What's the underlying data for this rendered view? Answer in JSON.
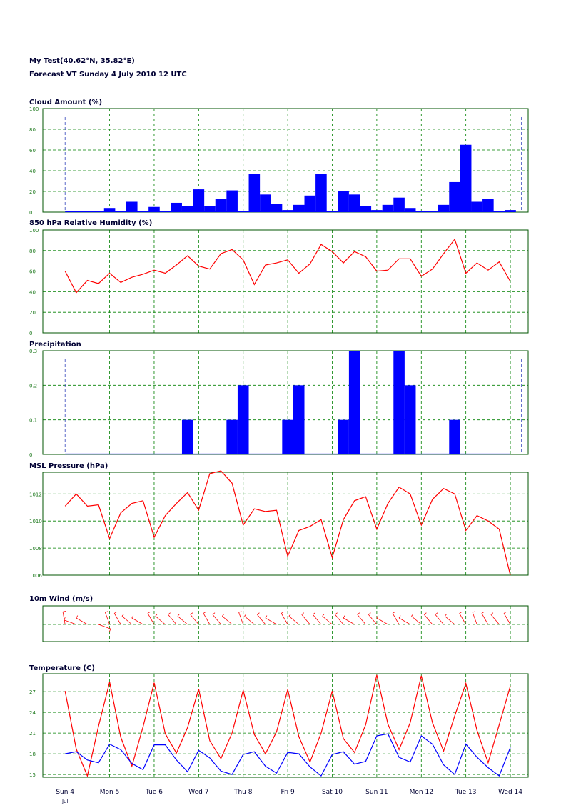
{
  "header": {
    "location": "My Test(40.62°N, 35.82°E)",
    "forecast": "Forecast VT Sunday  4 July 2010 12 UTC"
  },
  "colors": {
    "grid": "#008000",
    "frame": "#005500",
    "bar": "#0000ff",
    "red_line": "#ff0000",
    "blue_line": "#0000ff",
    "tick_text": "#1f7a1f",
    "title_text": "#000033",
    "sunday_label": "#cc0000"
  },
  "x_axis": {
    "labels": [
      "Sun  4",
      "Mon  5",
      "Tue  6",
      "Wed  7",
      "Thu  8",
      "Fri  9",
      "Sat 10",
      "Sun 11",
      "Mon 12",
      "Tue 13",
      "Wed 14"
    ],
    "sunday_indices": [
      0,
      7
    ],
    "sub_label": "Jul",
    "range_days": [
      -0.5,
      10.4
    ]
  },
  "chart_data": [
    {
      "id": "cloud",
      "type": "bar",
      "title": "Cloud Amount (%)",
      "ylim": [
        0,
        100
      ],
      "yticks": [
        0,
        20,
        40,
        60,
        80,
        100
      ],
      "grid": true,
      "step_days": 0.25,
      "x_start_days": 0,
      "values": [
        0,
        0,
        0,
        1,
        4,
        1,
        10,
        0,
        5,
        0,
        9,
        6,
        22,
        6,
        13,
        21,
        1,
        37,
        17,
        8,
        2,
        7,
        16,
        37,
        0,
        20,
        17,
        6,
        2,
        7,
        14,
        4,
        0,
        1,
        7,
        29,
        65,
        10,
        13,
        0,
        2
      ],
      "markers_days": [
        0,
        10.25
      ]
    },
    {
      "id": "rh",
      "type": "line",
      "title": "850 hPa Relative Humidity  (%)",
      "ylim": [
        0,
        100
      ],
      "yticks": [
        0,
        20,
        40,
        60,
        80,
        100
      ],
      "grid": true,
      "series": [
        {
          "x_start_days": 0,
          "step_days": 0.25,
          "values": [
            60,
            39,
            51,
            48,
            58,
            49,
            54,
            57,
            61,
            58,
            66,
            75,
            65,
            62,
            77,
            81,
            71,
            47,
            66,
            68,
            71,
            58,
            67,
            86,
            79,
            68,
            79,
            74,
            60,
            61,
            72,
            72,
            55,
            62,
            77,
            91,
            58,
            68,
            61,
            69,
            50
          ]
        }
      ]
    },
    {
      "id": "precip",
      "type": "bar",
      "title": "Precipitation",
      "ylim": [
        0,
        0.3
      ],
      "yticks": [
        0,
        0.1,
        0.2,
        0.3
      ],
      "grid": true,
      "step_days": 0.25,
      "x_start_days": 0,
      "values": [
        0,
        0,
        0,
        0,
        0,
        0,
        0,
        0,
        0,
        0,
        0,
        0.1,
        0,
        0,
        0,
        0.1,
        0.2,
        0,
        0,
        0,
        0.1,
        0.2,
        0,
        0,
        0,
        0.1,
        0.3,
        0,
        0,
        0,
        0.3,
        0.2,
        0,
        0,
        0,
        0.1,
        0,
        0,
        0,
        0,
        0
      ],
      "markers_days": [
        0,
        10.25
      ]
    },
    {
      "id": "mslp",
      "type": "line",
      "title": "MSL Pressure (hPa)",
      "ylim": [
        1006,
        1013.6
      ],
      "yticks": [
        1006,
        1008,
        1010,
        1012
      ],
      "grid": true,
      "series": [
        {
          "x_start_days": 0,
          "step_days": 0.25,
          "values": [
            1011.1,
            1012.0,
            1011.1,
            1011.2,
            1008.7,
            1010.6,
            1011.3,
            1011.5,
            1008.8,
            1010.4,
            1011.3,
            1012.1,
            1010.8,
            1013.5,
            1013.7,
            1012.8,
            1009.7,
            1010.9,
            1010.7,
            1010.8,
            1007.4,
            1009.3,
            1009.6,
            1010.1,
            1007.3,
            1010.1,
            1011.5,
            1011.8,
            1009.4,
            1011.3,
            1012.5,
            1012.0,
            1009.7,
            1011.6,
            1012.4,
            1012.0,
            1009.3,
            1010.4,
            1010.0,
            1009.4,
            1006.0
          ]
        }
      ]
    },
    {
      "id": "wind",
      "type": "scatter",
      "title": "10m Wind (m/s)",
      "grid": true,
      "step_days": 0.25,
      "x_start_days": 0,
      "directions_deg": [
        350,
        290,
        300,
        110,
        340,
        330,
        310,
        300,
        330,
        310,
        320,
        310,
        320,
        330,
        320,
        310,
        340,
        310,
        320,
        300,
        330,
        310,
        320,
        320,
        310,
        320,
        300,
        320,
        320,
        300,
        330,
        300,
        310,
        320,
        320,
        310,
        330,
        340,
        330,
        320,
        330
      ]
    },
    {
      "id": "temp",
      "type": "line",
      "title": "Temperature (C)",
      "ylim": [
        14.6,
        29.6
      ],
      "yticks": [
        15,
        18,
        21,
        24,
        27
      ],
      "grid": true,
      "series": [
        {
          "color": "red",
          "x_start_days": 0,
          "step_days": 0.25,
          "values": [
            27.1,
            18.7,
            14.8,
            22.0,
            28.4,
            20.4,
            16.2,
            21.9,
            28.3,
            20.9,
            18.1,
            21.8,
            27.4,
            19.9,
            17.3,
            21.0,
            27.2,
            20.8,
            18.0,
            21.2,
            27.3,
            20.5,
            16.8,
            21.0,
            27.1,
            20.2,
            18.2,
            22.2,
            29.4,
            22.3,
            18.6,
            22.5,
            29.3,
            22.5,
            18.4,
            23.5,
            28.2,
            21.4,
            16.7,
            22.2,
            27.8
          ]
        },
        {
          "color": "blue",
          "x_start_days": 0,
          "step_days": 0.25,
          "values": [
            18.0,
            18.3,
            17.1,
            16.7,
            19.4,
            18.6,
            16.6,
            15.7,
            19.3,
            19.3,
            17.1,
            15.4,
            18.5,
            17.4,
            15.5,
            15.0,
            17.9,
            18.3,
            16.2,
            15.2,
            18.2,
            18.0,
            16.1,
            14.8,
            17.9,
            18.3,
            16.5,
            16.9,
            20.6,
            20.9,
            17.5,
            16.8,
            20.6,
            19.4,
            16.4,
            15.0,
            19.4,
            17.5,
            16.0,
            14.8,
            18.9
          ]
        }
      ]
    }
  ]
}
